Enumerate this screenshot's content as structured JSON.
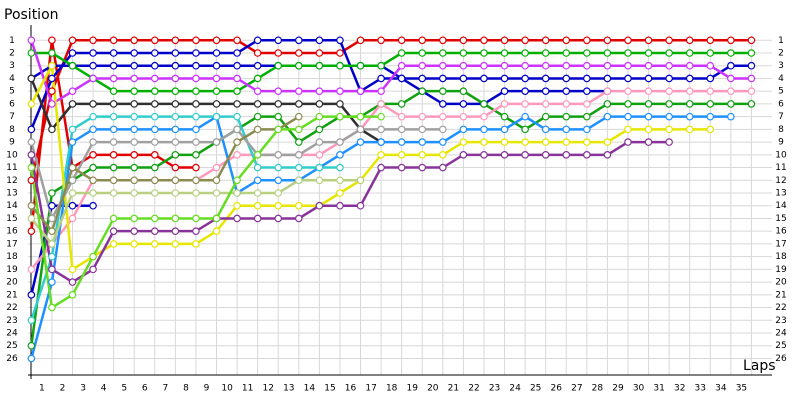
{
  "chart_data": {
    "type": "line",
    "y_label": "Position",
    "x_label": "Laps",
    "x": [
      0,
      1,
      2,
      3,
      4,
      5,
      6,
      7,
      8,
      9,
      10,
      11,
      12,
      13,
      14,
      15,
      16,
      17,
      18,
      19,
      20,
      21,
      22,
      23,
      24,
      25,
      26,
      27,
      28,
      29,
      30,
      31,
      32,
      33,
      34,
      35
    ],
    "xlim": [
      -0.6,
      36
    ],
    "ylim": [
      27.3,
      -0.2
    ],
    "xticks": [
      1,
      2,
      3,
      4,
      5,
      6,
      7,
      8,
      9,
      10,
      11,
      12,
      13,
      14,
      15,
      16,
      17,
      18,
      19,
      20,
      21,
      22,
      23,
      24,
      25,
      26,
      27,
      28,
      29,
      30,
      31,
      32,
      33,
      34,
      35
    ],
    "yticks": [
      1,
      2,
      3,
      4,
      5,
      6,
      7,
      8,
      9,
      10,
      11,
      12,
      13,
      14,
      15,
      16,
      17,
      18,
      19,
      20,
      21,
      22,
      23,
      24,
      25,
      26
    ],
    "grid": true,
    "series": [
      {
        "color": "#e00000",
        "values": [
          12,
          5,
          1,
          1,
          1,
          1,
          1,
          1,
          1,
          1,
          1,
          2,
          2,
          2,
          2,
          2,
          1,
          1,
          1,
          1,
          1,
          1,
          1,
          1,
          1,
          1,
          1,
          1,
          1,
          1,
          1,
          1,
          1,
          1,
          1,
          1
        ]
      },
      {
        "color": "#e00000",
        "values": [
          16,
          1,
          11,
          10,
          10,
          10,
          10,
          11,
          11,
          null,
          null,
          null,
          null,
          null,
          null,
          null,
          null,
          null,
          null,
          null,
          null,
          null,
          null,
          null,
          null,
          null,
          null,
          null,
          null,
          null,
          null,
          null,
          null,
          null,
          null,
          null
        ]
      },
      {
        "color": "#0000c8",
        "values": [
          8,
          4,
          2,
          2,
          2,
          2,
          2,
          2,
          2,
          2,
          2,
          1,
          1,
          1,
          1,
          1,
          5,
          4,
          4,
          5,
          6,
          6,
          6,
          5,
          5,
          5,
          5,
          5,
          5,
          null,
          null,
          null,
          null,
          null,
          null,
          null
        ]
      },
      {
        "color": "#0000c8",
        "values": [
          21,
          14,
          14,
          14,
          null,
          null,
          null,
          null,
          null,
          null,
          null,
          null,
          null,
          null,
          null,
          null,
          null,
          null,
          null,
          null,
          null,
          null,
          null,
          null,
          null,
          null,
          null,
          null,
          null,
          null,
          null,
          null,
          null,
          null,
          null,
          null
        ]
      },
      {
        "color": "#0000c8",
        "values": [
          4,
          3,
          3,
          3,
          3,
          3,
          3,
          3,
          3,
          3,
          3,
          3,
          3,
          3,
          3,
          3,
          3,
          3,
          4,
          4,
          4,
          4,
          4,
          4,
          4,
          4,
          4,
          4,
          4,
          4,
          4,
          4,
          4,
          4,
          3,
          3
        ]
      },
      {
        "color": "#00b000",
        "values": [
          2,
          2,
          3,
          4,
          5,
          5,
          5,
          5,
          5,
          5,
          5,
          4,
          3,
          3,
          3,
          3,
          3,
          3,
          2,
          2,
          2,
          2,
          2,
          2,
          2,
          2,
          2,
          2,
          2,
          2,
          2,
          2,
          2,
          2,
          2,
          2
        ]
      },
      {
        "color": "#10a010",
        "values": [
          25,
          13,
          12,
          11,
          11,
          11,
          11,
          10,
          10,
          9,
          8,
          7,
          7,
          9,
          8,
          7,
          7,
          6,
          6,
          5,
          5,
          5,
          6,
          7,
          8,
          7,
          7,
          7,
          6,
          6,
          6,
          6,
          6,
          6,
          6,
          6
        ]
      },
      {
        "color": "#cc33ff",
        "values": [
          1,
          6,
          5,
          4,
          4,
          4,
          4,
          4,
          4,
          4,
          4,
          5,
          5,
          5,
          5,
          5,
          5,
          5,
          3,
          3,
          3,
          3,
          3,
          3,
          3,
          3,
          3,
          3,
          3,
          3,
          3,
          3,
          3,
          3,
          4,
          4
        ]
      },
      {
        "color": "#303030",
        "values": [
          4,
          8,
          6,
          6,
          6,
          6,
          6,
          6,
          6,
          6,
          6,
          6,
          6,
          6,
          6,
          6,
          8,
          9,
          null,
          null,
          null,
          null,
          null,
          null,
          null,
          null,
          null,
          null,
          null,
          null,
          null,
          null,
          null,
          null,
          null,
          null
        ]
      },
      {
        "color": "#ff99bb",
        "values": [
          19,
          17,
          15,
          12,
          12,
          12,
          12,
          12,
          12,
          11,
          10,
          10,
          10,
          10,
          10,
          9,
          8,
          6,
          7,
          7,
          7,
          7,
          7,
          6,
          6,
          6,
          6,
          6,
          5,
          5,
          5,
          5,
          5,
          5,
          5,
          5
        ]
      },
      {
        "color": "#1e90ff",
        "values": [
          26,
          20,
          9,
          8,
          8,
          8,
          8,
          8,
          8,
          7,
          13,
          12,
          12,
          12,
          11,
          10,
          9,
          9,
          9,
          9,
          9,
          8,
          8,
          8,
          7,
          8,
          8,
          8,
          7,
          7,
          7,
          7,
          7,
          7,
          7,
          null
        ]
      },
      {
        "color": "#33cccc",
        "values": [
          23,
          18,
          8,
          7,
          7,
          7,
          7,
          7,
          7,
          7,
          7,
          11,
          11,
          11,
          11,
          11,
          null,
          null,
          null,
          null,
          null,
          null,
          null,
          null,
          null,
          null,
          null,
          null,
          null,
          null,
          null,
          null,
          null,
          null,
          null,
          null
        ]
      },
      {
        "color": "#e6e600",
        "values": [
          6,
          3,
          19,
          18,
          17,
          17,
          17,
          17,
          17,
          16,
          14,
          14,
          14,
          14,
          14,
          13,
          12,
          10,
          10,
          10,
          10,
          9,
          9,
          9,
          9,
          9,
          9,
          9,
          9,
          8,
          8,
          8,
          8,
          8,
          null,
          null
        ]
      },
      {
        "color": "#883399",
        "values": [
          10,
          19,
          20,
          19,
          16,
          16,
          16,
          16,
          16,
          15,
          15,
          15,
          15,
          15,
          14,
          14,
          14,
          11,
          11,
          11,
          11,
          10,
          10,
          10,
          10,
          10,
          10,
          10,
          10,
          9,
          9,
          9,
          null,
          null,
          null,
          null
        ]
      },
      {
        "color": "#a0a0a0",
        "values": [
          9,
          15,
          12,
          9,
          9,
          9,
          9,
          9,
          9,
          9,
          8,
          10,
          10,
          10,
          9,
          9,
          8,
          8,
          8,
          8,
          8,
          null,
          null,
          null,
          null,
          null,
          null,
          null,
          null,
          null,
          null,
          null,
          null,
          null,
          null,
          null
        ]
      },
      {
        "color": "#8b8b50",
        "values": [
          14,
          16,
          11,
          12,
          12,
          12,
          12,
          12,
          12,
          12,
          9,
          8,
          8,
          7,
          null,
          null,
          null,
          null,
          null,
          null,
          null,
          null,
          null,
          null,
          null,
          null,
          null,
          null,
          null,
          null,
          null,
          null,
          null,
          null,
          null,
          null
        ]
      },
      {
        "color": "#b8d080",
        "values": [
          15,
          17,
          13,
          13,
          13,
          13,
          13,
          13,
          13,
          13,
          13,
          13,
          13,
          12,
          12,
          12,
          12,
          null,
          null,
          null,
          null,
          null,
          null,
          null,
          null,
          null,
          null,
          null,
          null,
          null,
          null,
          null,
          null,
          null,
          null,
          null
        ]
      },
      {
        "color": "#66dd22",
        "values": [
          11,
          22,
          21,
          18,
          15,
          15,
          15,
          15,
          15,
          15,
          12,
          10,
          8,
          8,
          7,
          7,
          7,
          7,
          null,
          null,
          null,
          null,
          null,
          null,
          null,
          null,
          null,
          null,
          null,
          null,
          null,
          null,
          null,
          null,
          null,
          null
        ]
      }
    ]
  }
}
